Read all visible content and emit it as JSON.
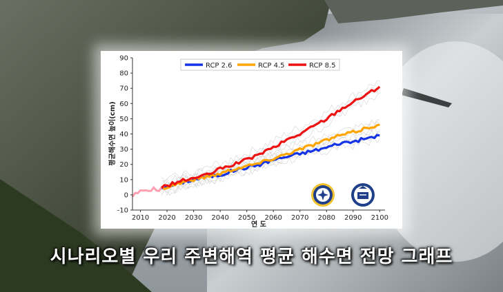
{
  "caption": "시나리오별 우리 주변해역 평균 해수면 전망 그래프",
  "colors": {
    "rcp26": "#1433e6",
    "rcp45": "#ffa500",
    "rcp85": "#ee1111",
    "observed": "#ff9fb0"
  },
  "chart_data": {
    "type": "line",
    "title": "",
    "xlabel": "연 도",
    "ylabel": "평균해수면 높이(cm)",
    "xlim": [
      2007,
      2102
    ],
    "ylim": [
      -10,
      90
    ],
    "xticks": [
      2010,
      2020,
      2030,
      2040,
      2050,
      2060,
      2070,
      2080,
      2090,
      2100
    ],
    "yticks": [
      -10,
      0,
      10,
      20,
      30,
      40,
      50,
      60,
      70,
      80,
      90
    ],
    "grid": false,
    "legend_position": "top",
    "observed": {
      "x": [
        2007,
        2010,
        2013,
        2016,
        2019
      ],
      "y": [
        -1,
        2,
        4,
        3,
        5
      ]
    },
    "series": [
      {
        "name": "RCP 2.6",
        "x": [
          2018,
          2020,
          2025,
          2030,
          2035,
          2040,
          2045,
          2050,
          2055,
          2060,
          2065,
          2070,
          2075,
          2080,
          2085,
          2090,
          2095,
          2100
        ],
        "y": [
          5,
          5,
          8,
          10,
          12,
          13,
          16,
          18,
          20,
          23,
          25,
          27,
          29,
          31,
          34,
          35,
          37,
          39
        ]
      },
      {
        "name": "RCP 4.5",
        "x": [
          2018,
          2020,
          2025,
          2030,
          2035,
          2040,
          2045,
          2050,
          2055,
          2060,
          2065,
          2070,
          2075,
          2080,
          2085,
          2090,
          2095,
          2100
        ],
        "y": [
          5,
          5,
          8,
          10,
          12,
          14,
          17,
          19,
          21,
          24,
          27,
          30,
          33,
          36,
          39,
          41,
          44,
          46
        ]
      },
      {
        "name": "RCP 8.5",
        "x": [
          2018,
          2020,
          2025,
          2030,
          2035,
          2040,
          2045,
          2050,
          2055,
          2060,
          2065,
          2070,
          2075,
          2080,
          2085,
          2090,
          2095,
          2100
        ],
        "y": [
          5,
          6,
          9,
          11,
          13,
          17,
          20,
          23,
          27,
          31,
          36,
          40,
          45,
          50,
          56,
          61,
          66,
          71
        ]
      }
    ]
  }
}
